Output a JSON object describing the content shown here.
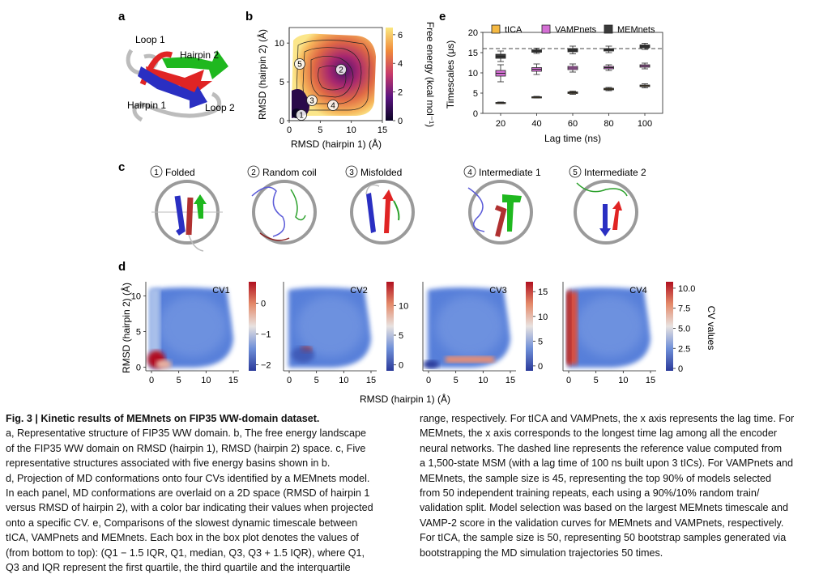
{
  "panel_letters": {
    "a": "a",
    "b": "b",
    "c": "c",
    "d": "d",
    "e": "e"
  },
  "panel_a": {
    "labels": {
      "loop1": "Loop 1",
      "hairpin2": "Hairpin 2",
      "hairpin1": "Hairpin 1",
      "loop2": "Loop 2"
    },
    "colors": {
      "hairpin1": "#2a2fc2",
      "hairpin2": "#1fb81f",
      "loop": "#e02424",
      "coil": "#b8b8b8"
    }
  },
  "panel_b": {
    "xlabel": "RMSD (hairpin 1) (Å)",
    "ylabel": "RMSD (hairpin 2) (Å)",
    "colorbar_label": "Free energy (kcal mol⁻¹)",
    "xticks": [
      "0",
      "5",
      "10",
      "15"
    ],
    "yticks": [
      "0",
      "5",
      "10"
    ],
    "cbar_ticks": [
      "0",
      "2",
      "4",
      "6"
    ],
    "xlim": [
      0,
      15
    ],
    "ylim": [
      0,
      12
    ],
    "cbar_lim": [
      0,
      6.5
    ],
    "basin_markers": [
      "1",
      "2",
      "3",
      "4",
      "5"
    ]
  },
  "panel_c": {
    "structures": [
      {
        "num": "1",
        "label": "Folded"
      },
      {
        "num": "2",
        "label": "Random coil"
      },
      {
        "num": "3",
        "label": "Misfolded"
      },
      {
        "num": "4",
        "label": "Intermediate 1"
      },
      {
        "num": "5",
        "label": "Intermediate 2"
      }
    ]
  },
  "panel_d": {
    "xlabel": "RMSD (hairpin 1) (Å)",
    "ylabel": "RMSD (hairpin 2) (Å)",
    "colorbar_label": "CV values",
    "xticks": [
      "0",
      "5",
      "10",
      "15"
    ],
    "yticks": [
      "0",
      "5",
      "10"
    ],
    "panels": [
      {
        "name": "CV1",
        "cbar_ticks": [
          "0",
          "−1",
          "−2"
        ],
        "cbar_lim": [
          -2.2,
          0.7
        ]
      },
      {
        "name": "CV2",
        "cbar_ticks": [
          "10",
          "5",
          "0"
        ],
        "cbar_lim": [
          -1,
          14
        ]
      },
      {
        "name": "CV3",
        "cbar_ticks": [
          "15",
          "10",
          "5",
          "0"
        ],
        "cbar_lim": [
          -1,
          17
        ]
      },
      {
        "name": "CV4",
        "cbar_ticks": [
          "10.0",
          "7.5",
          "5.0",
          "2.5",
          "0"
        ],
        "cbar_lim": [
          -0.3,
          10.8
        ]
      }
    ]
  },
  "chart_data": {
    "type": "box",
    "xlabel": "Lag time (ns)",
    "ylabel": "Timescales (μs)",
    "categories": [
      "20",
      "40",
      "60",
      "80",
      "100"
    ],
    "ylim": [
      0,
      20
    ],
    "yticks": [
      "0",
      "5",
      "10",
      "15",
      "20"
    ],
    "reference_line": 16,
    "legend_position": "top",
    "series": [
      {
        "name": "tICA",
        "color": "#f5b942",
        "boxes": [
          [
            2.4,
            2.5,
            2.6,
            2.7,
            2.8
          ],
          [
            3.8,
            3.9,
            4.0,
            4.1,
            4.2
          ],
          [
            4.7,
            4.9,
            5.1,
            5.3,
            5.5
          ],
          [
            5.6,
            5.8,
            6.0,
            6.2,
            6.4
          ],
          [
            6.3,
            6.6,
            6.8,
            7.0,
            7.3
          ]
        ]
      },
      {
        "name": "VAMPnets",
        "color": "#d46fd4",
        "boxes": [
          [
            7.8,
            9.2,
            9.9,
            10.6,
            12.0
          ],
          [
            9.6,
            10.4,
            10.9,
            11.3,
            12.2
          ],
          [
            10.2,
            10.8,
            11.2,
            11.6,
            12.2
          ],
          [
            10.6,
            11.0,
            11.3,
            11.6,
            12.0
          ],
          [
            11.0,
            11.4,
            11.7,
            12.0,
            12.4
          ]
        ]
      },
      {
        "name": "MEMnets",
        "color": "#3a3a3a",
        "boxes": [
          [
            12.8,
            13.6,
            14.1,
            14.6,
            15.4
          ],
          [
            14.8,
            15.1,
            15.4,
            15.7,
            16.1
          ],
          [
            14.7,
            15.2,
            15.6,
            16.0,
            16.6
          ],
          [
            15.0,
            15.4,
            15.7,
            16.0,
            16.6
          ],
          [
            15.8,
            16.2,
            16.6,
            16.9,
            17.3
          ]
        ]
      }
    ]
  },
  "caption": {
    "title": "Fig. 3 | Kinetic results of MEMnets on FIP35 WW-domain dataset.",
    "left": [
      "a, Representative structure of FIP35 WW domain. b, The free energy landscape",
      "of the FIP35 WW domain on RMSD (hairpin 1), RMSD (hairpin 2) space. c, Five",
      "representative structures associated with five energy basins shown in b.",
      "d, Projection of MD conformations onto four CVs identified by a MEMnets model.",
      "In each panel, MD conformations are overlaid on a 2D space (RMSD of hairpin 1",
      "versus RMSD of hairpin 2), with a color bar indicating their values when projected",
      "onto a specific CV. e, Comparisons of the slowest dynamic timescale between",
      "tICA, VAMPnets and MEMnets. Each box in the box plot denotes the values of",
      "(from bottom to top): (Q1 − 1.5 IQR, Q1, median, Q3, Q3 + 1.5 IQR), where Q1,",
      "Q3 and IQR represent the first quartile, the third quartile and the interquartile"
    ],
    "right": [
      "range, respectively. For tICA and VAMPnets, the x axis represents the lag time. For",
      "MEMnets, the x axis corresponds to the longest time lag among all the encoder",
      "neural networks. The dashed line represents the reference value computed from",
      "a 1,500-state MSM (with a lag time of 100 ns built upon 3 tICs). For VAMPnets and",
      "MEMnets, the sample size is 45, representing the top 90% of models selected",
      "from 50 independent training repeats, each using a 90%/10% random train/",
      "validation split. Model selection was based on the largest MEMnets timescale and",
      "VAMP-2 score in the validation curves for MEMnets and VAMPnets, respectively.",
      "For tICA, the sample size is 50, representing 50 bootstrap samples generated via",
      "bootstrapping the MD simulation trajectories 50 times."
    ]
  }
}
